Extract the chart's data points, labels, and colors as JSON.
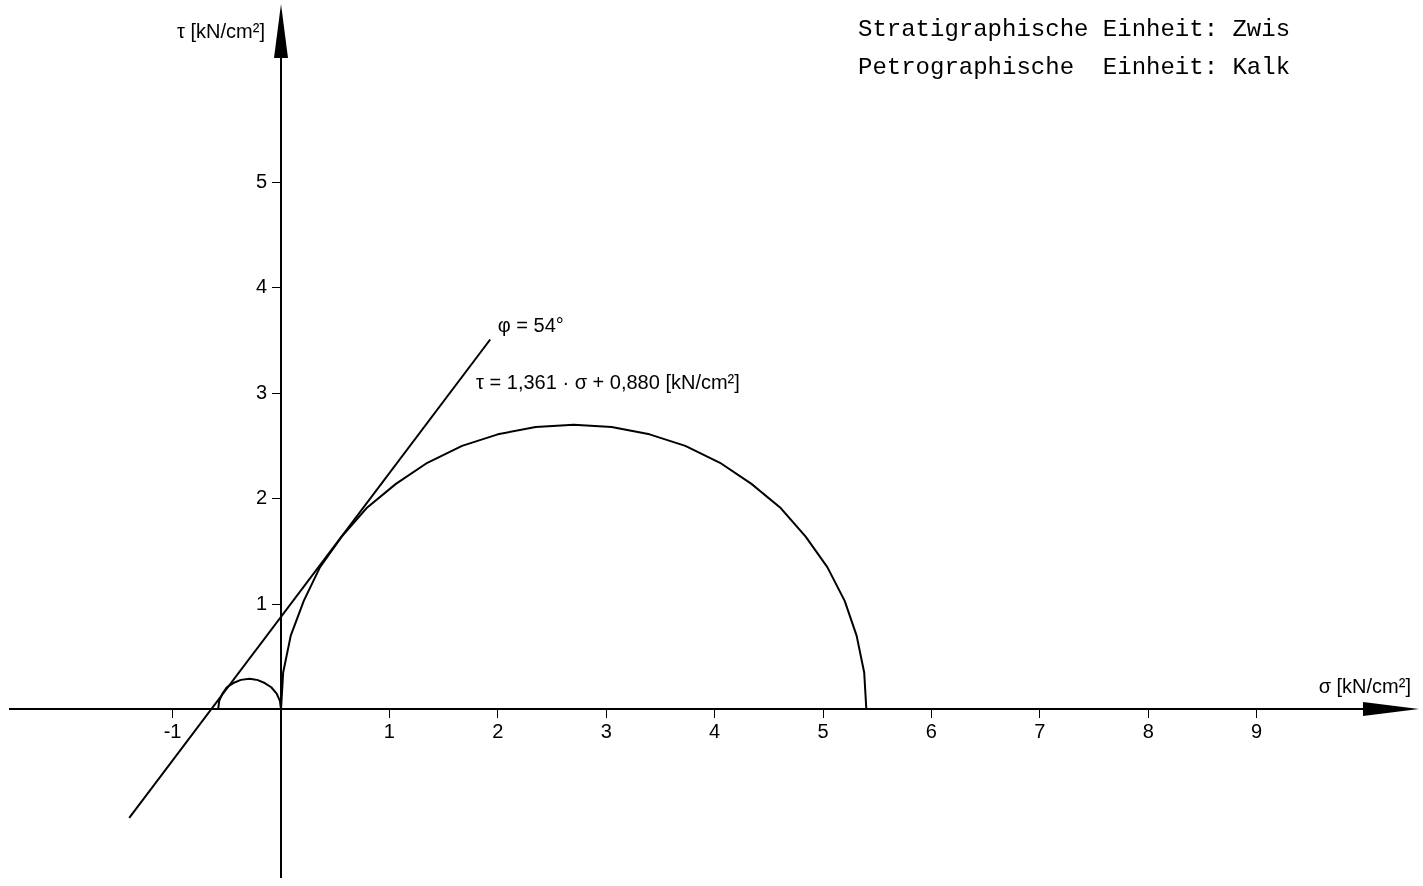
{
  "chart_data": {
    "type": "line",
    "xlabel": "σ [kN/cm²]",
    "ylabel": "τ [kN/cm²]",
    "xlim": [
      -2.5,
      10
    ],
    "ylim": [
      -1.6,
      6.2
    ],
    "xticks": [
      -1,
      1,
      2,
      3,
      4,
      5,
      6,
      7,
      8,
      9
    ],
    "yticks": [
      1,
      2,
      3,
      4,
      5
    ],
    "grid": false,
    "legend": false,
    "marker": "none",
    "line_style": "solid",
    "series": [
      {
        "color": "#000000",
        "x": [
          5.4,
          5.38,
          5.31,
          5.2,
          5.04,
          4.84,
          4.61,
          4.34,
          4.05,
          3.73,
          3.4,
          3.05,
          2.7,
          2.35,
          2.0,
          1.67,
          1.35,
          1.06,
          0.79,
          0.56,
          0.36,
          0.21,
          0.09,
          0.02,
          0
        ],
        "values": [
          0,
          0.35,
          0.7,
          1.03,
          1.35,
          1.64,
          1.91,
          2.14,
          2.34,
          2.5,
          2.61,
          2.68,
          2.7,
          2.68,
          2.61,
          2.5,
          2.34,
          2.14,
          1.91,
          1.64,
          1.35,
          1.03,
          0.7,
          0.35,
          0
        ]
      },
      {
        "color": "#000000",
        "x": [
          0,
          -0.01,
          -0.04,
          -0.09,
          -0.15,
          -0.22,
          -0.29,
          -0.37,
          -0.44,
          -0.5,
          -0.54,
          -0.57,
          -0.58
        ],
        "values": [
          0,
          0.08,
          0.15,
          0.21,
          0.25,
          0.28,
          0.29,
          0.28,
          0.25,
          0.21,
          0.15,
          0.08,
          0
        ]
      },
      {
        "color": "#000000",
        "x": [
          -1.4,
          1.93
        ],
        "values": [
          -1.03,
          3.51
        ]
      }
    ],
    "title": "Stratigraphische Einheit: Zwis",
    "subtitle": "Petrographische  Einheit: Kalk",
    "annotations": [
      "φ = 54°",
      "τ = 1,361 · σ + 0,880 [kN/cm²]"
    ]
  }
}
